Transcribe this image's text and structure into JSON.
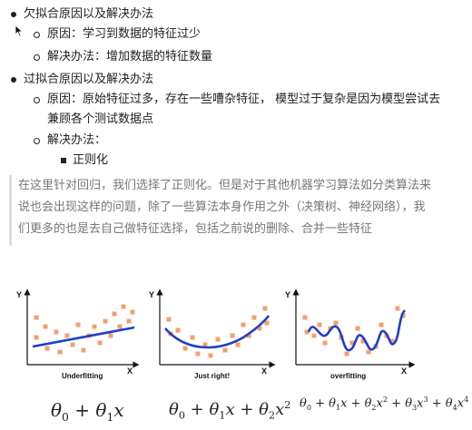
{
  "outline": {
    "underfit_heading": "欠拟合原因以及解决办法",
    "underfit_cause": "原因：学习到数据的特征过少",
    "underfit_solution": "解决办法：增加数据的特征数量",
    "overfit_heading": "过拟合原因以及解决办法",
    "overfit_cause_line1": "原因：原始特征过多，存在一些嘈杂特征， 模型过于复杂是因为模型尝试去",
    "overfit_cause_line2": "兼顾各个测试数据点",
    "overfit_solution": "解决办法：",
    "overfit_solution_item": "正则化"
  },
  "quote": {
    "line1": "在这里针对回归，我们选择了正则化。但是对于其他机器学习算法如分类算法来",
    "line2": "说也会出现这样的问题，除了一些算法本身作用之外（决策树、神经网络），我",
    "line3": "们更多的也是去自己做特征选择，包括之前说的删除、合并一些特征"
  },
  "figure": {
    "axis_y": "Y",
    "axis_x": "X",
    "point_color": "#f0a070",
    "curve_color": "#1f3fc8",
    "panels": [
      {
        "title": "Underfitting",
        "formula": {
          "t0": "θ",
          "s0": "0",
          "op": " + ",
          "t1": "θ",
          "s1": "1",
          "v": "x"
        }
      },
      {
        "title": "Just right!",
        "formula": {
          "t0": "θ",
          "s0": "0",
          "op": " + ",
          "t1": "θ",
          "s1": "1",
          "v1": "x",
          "op2": " + ",
          "t2": "θ",
          "s2": "2",
          "v2": "x",
          "p2": "2"
        }
      },
      {
        "title": "overfitting",
        "formula_terms": [
          {
            "coef": "θ",
            "sub": "0",
            "var": "",
            "pow": ""
          },
          {
            "coef": "θ",
            "sub": "1",
            "var": "x",
            "pow": ""
          },
          {
            "coef": "θ",
            "sub": "2",
            "var": "x",
            "pow": "2"
          },
          {
            "coef": "θ",
            "sub": "3",
            "var": "x",
            "pow": "3"
          },
          {
            "coef": "θ",
            "sub": "4",
            "var": "x",
            "pow": "4"
          }
        ],
        "formula_plus": " + "
      }
    ]
  }
}
